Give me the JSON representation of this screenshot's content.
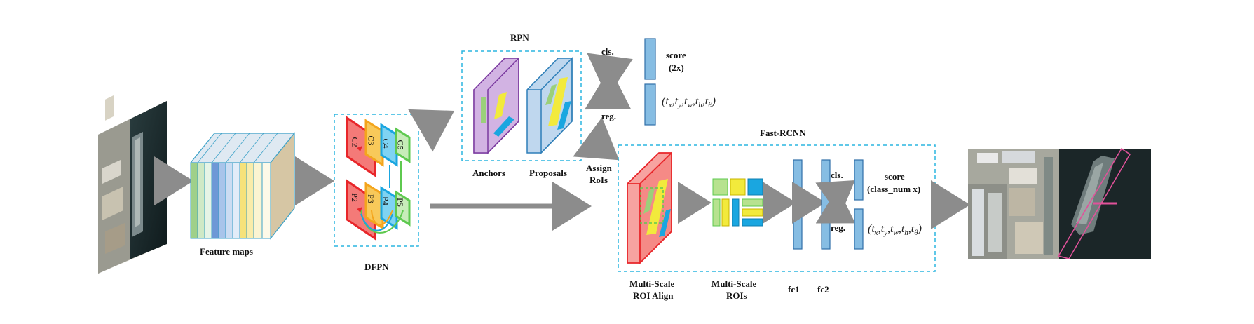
{
  "labels": {
    "feature_maps": "Feature maps",
    "dfpn": "DFPN",
    "rpn": "RPN",
    "anchors": "Anchors",
    "proposals": "Proposals",
    "assign_rois_1": "Assign",
    "assign_rois_2": "RoIs",
    "fast_rcnn": "Fast-RCNN",
    "cls_top": "cls.",
    "reg_top": "reg.",
    "score_top_1": "score",
    "score_top_2": "(2x)",
    "cls_bottom": "cls.",
    "reg_bottom": "reg.",
    "score_bottom_1": "score",
    "score_bottom_2": "(class_num x)",
    "msra_1": "Multi-Scale",
    "msra_2": "ROI Align",
    "msr_1": "Multi-Scale",
    "msr_2": "ROIs",
    "fc1": "fc1",
    "fc2": "fc2",
    "c2": "C2",
    "c3": "C3",
    "c4": "C4",
    "c5": "C5",
    "p2": "P2",
    "p3": "P3",
    "p4": "P4",
    "p5": "P5"
  },
  "regression_terms": [
    "t",
    "x",
    "t",
    "y",
    "t",
    "w",
    "t",
    "h",
    "t",
    "θ"
  ],
  "colors": {
    "arrow": "#8c8c8c",
    "dashed_box": "#2bb5e0",
    "fc_fill": "#86bde3",
    "fc_stroke": "#2f6fa8",
    "red": "#e8262a",
    "orange": "#f4a51c",
    "blue": "#1aa6e0",
    "green": "#5ec94f",
    "purple": "#9b59c0",
    "yellow": "#f2ea3c"
  },
  "icons": [
    "satellite-image-input",
    "satellite-image-output"
  ]
}
